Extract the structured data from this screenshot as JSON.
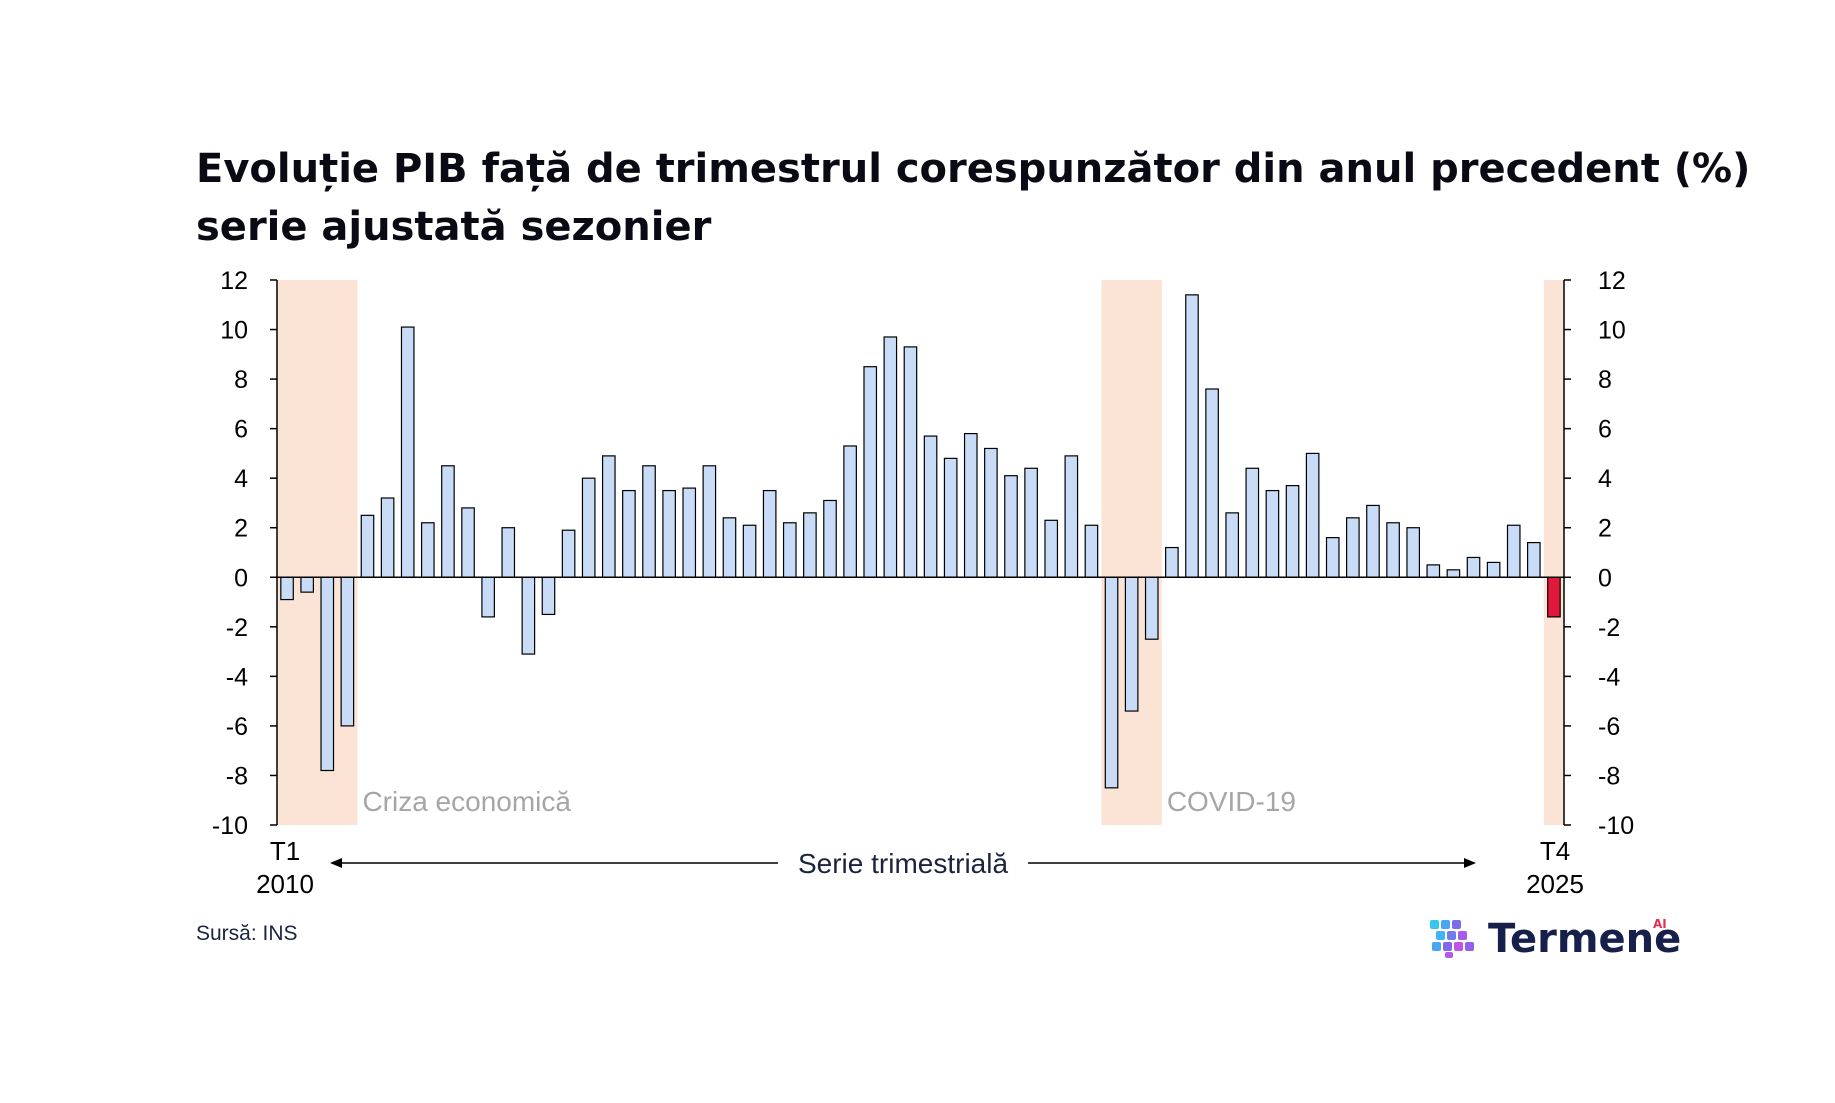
{
  "chart_data": {
    "type": "bar",
    "title": "Evoluție PIB față de trimestrul corespunzător din anul precedent (%)",
    "subtitle": "serie ajustată sezonier",
    "ylim": [
      -10,
      12
    ],
    "yticks": [
      12,
      10,
      8,
      6,
      4,
      2,
      0,
      -2,
      -4,
      -6,
      -8,
      -10
    ],
    "grid": false,
    "values": [
      -0.9,
      -0.6,
      -7.8,
      -6.0,
      2.5,
      3.2,
      10.1,
      2.2,
      4.5,
      2.8,
      -1.6,
      2.0,
      -3.1,
      -1.5,
      1.9,
      4.0,
      4.9,
      3.5,
      4.5,
      3.5,
      3.6,
      4.5,
      2.4,
      2.1,
      3.5,
      2.2,
      2.6,
      3.1,
      5.3,
      8.5,
      9.7,
      9.3,
      5.7,
      4.8,
      5.8,
      5.2,
      4.1,
      4.4,
      2.3,
      4.9,
      2.1,
      -8.5,
      -5.4,
      -2.5,
      1.2,
      11.4,
      7.6,
      2.6,
      4.4,
      3.5,
      3.7,
      5.0,
      1.6,
      2.4,
      2.9,
      2.2,
      2.0,
      0.5,
      0.3,
      0.8,
      0.6,
      2.1,
      1.4,
      -1.6
    ],
    "highlight_last": true,
    "colors": {
      "bar_fill": "#c8dcf7",
      "bar_stroke": "#000000",
      "highlight_fill": "#e0183c",
      "shade": "#fbe3d6"
    },
    "shaded_periods": [
      {
        "label": "Criza economică",
        "start": 0,
        "end": 3
      },
      {
        "label": "COVID-19",
        "start": 41,
        "end": 43
      },
      {
        "label": "",
        "start": 63,
        "end": 63
      }
    ],
    "x_start": {
      "quarter": "T1",
      "year": "2010"
    },
    "x_end": {
      "quarter": "T4",
      "year": "2025"
    },
    "x_caption": "Serie trimestrială",
    "source": "Sursă: INS"
  },
  "brand": {
    "name": "Termene",
    "superscript": "AI",
    "logo_icon": "cube-grid-icon"
  }
}
